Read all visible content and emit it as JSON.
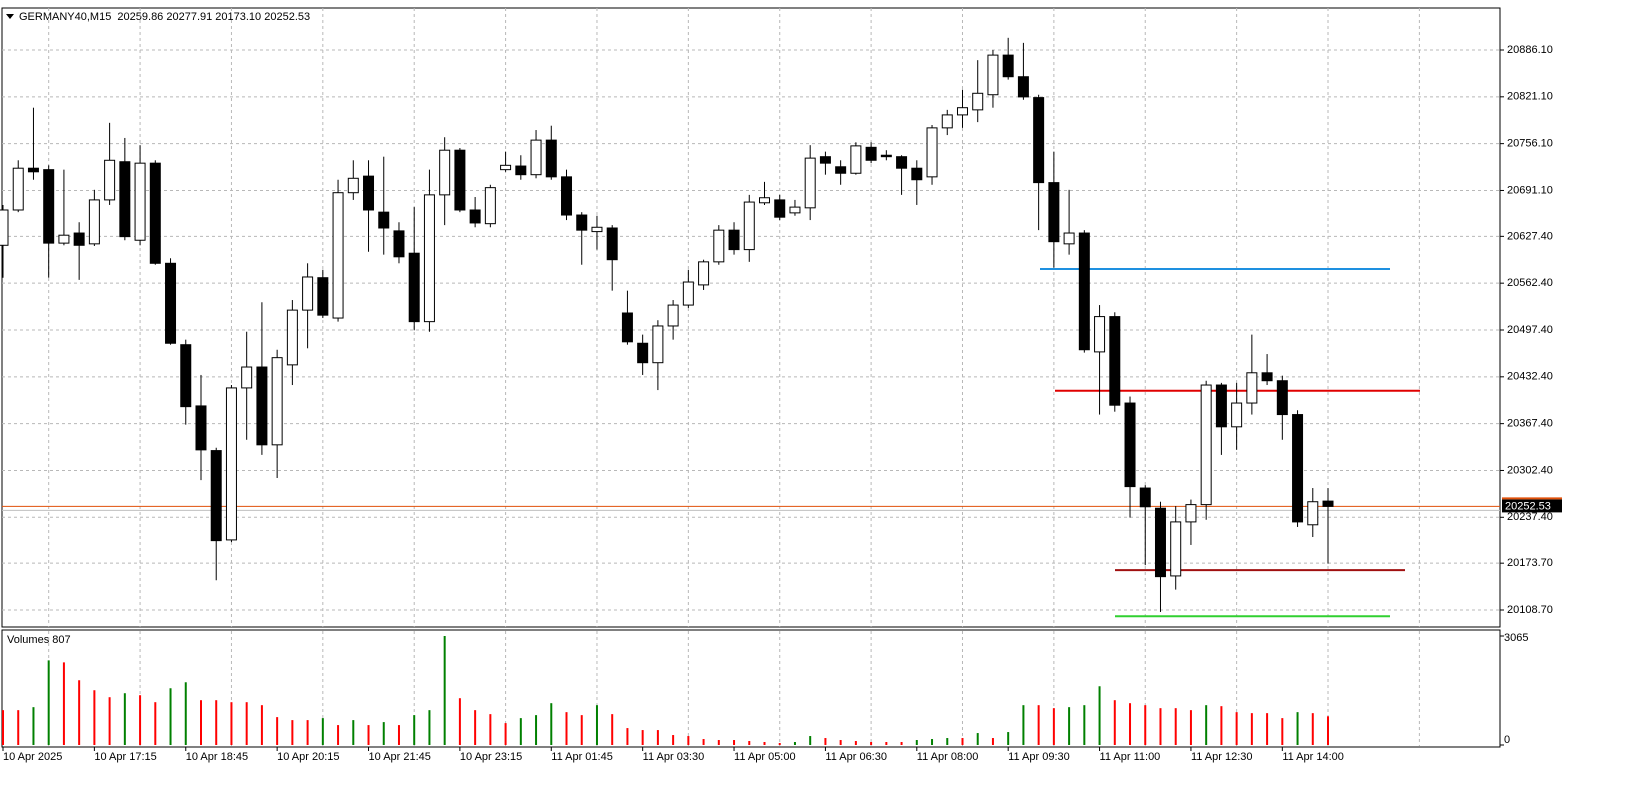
{
  "chart_data": {
    "type": "candlestick",
    "title": "GERMANY40,M15  20259.86 20277.91 20173.10 20252.53",
    "categories": [
      "10 Apr 2025",
      null,
      null,
      null,
      null,
      null,
      "10 Apr 17:15",
      null,
      null,
      null,
      null,
      null,
      "10 Apr 18:45",
      null,
      null,
      null,
      null,
      null,
      "10 Apr 20:15",
      null,
      null,
      null,
      null,
      null,
      "10 Apr 21:45",
      null,
      null,
      null,
      null,
      null,
      "10 Apr 23:15",
      null,
      null,
      null,
      null,
      null,
      "11 Apr 01:45",
      null,
      null,
      null,
      null,
      null,
      "11 Apr 03:30",
      null,
      null,
      null,
      null,
      null,
      "11 Apr 05:00",
      null,
      null,
      null,
      null,
      null,
      "11 Apr 06:30",
      null,
      null,
      null,
      null,
      null,
      "11 Apr 08:00",
      null,
      null,
      null,
      null,
      null,
      "11 Apr 09:30",
      null,
      null,
      null,
      null,
      null,
      "11 Apr 11:00",
      null,
      null,
      null,
      null,
      null,
      "11 Apr 12:30",
      null,
      null,
      null,
      null,
      null,
      "11 Apr 14:00",
      null,
      null,
      null
    ],
    "open": [
      20615,
      20664,
      20722,
      20720,
      20618,
      20632,
      20617,
      20678,
      20731,
      20622,
      20729,
      20590,
      20477,
      20392,
      20330,
      20206,
      20417,
      20446,
      20338,
      20449,
      20525,
      20570,
      20514,
      20688,
      20711,
      20661,
      20635,
      20604,
      20509,
      20685,
      20747,
      20664,
      20645,
      20720,
      20725,
      20713,
      20761,
      20710,
      20657,
      20634,
      20639,
      20521,
      20479,
      20452,
      20503,
      20532,
      20560,
      20592,
      20636,
      20609,
      20674,
      20678,
      20660,
      20667,
      20738,
      20724,
      20715,
      20751,
      20740,
      20738,
      20722,
      20710,
      20778,
      20796,
      20803,
      20824,
      20879,
      20849,
      20820,
      20702,
      20617,
      20632,
      20467,
      20516,
      20396,
      20278,
      20250,
      20156,
      20231,
      20255,
      20421,
      20363,
      20396,
      20438,
      20427,
      20380,
      20227,
      20259.86
    ],
    "high": [
      20671,
      20733,
      20806,
      20726,
      20720,
      20647,
      20692,
      20785,
      20764,
      20754,
      20733,
      20597,
      20484,
      20435,
      20334,
      20421,
      20495,
      20536,
      20470,
      20539,
      20590,
      20581,
      20706,
      20733,
      20733,
      20738,
      20647,
      20668,
      20720,
      20765,
      20750,
      20682,
      20699,
      20745,
      20740,
      20775,
      20781,
      20720,
      20661,
      20656,
      20643,
      20552,
      20491,
      20511,
      20539,
      20581,
      20595,
      20643,
      20647,
      20685,
      20703,
      20685,
      20678,
      20754,
      20745,
      20733,
      20758,
      20758,
      20747,
      20740,
      20733,
      20782,
      20803,
      20831,
      20872,
      20886,
      20903,
      20896,
      20824,
      20745,
      20692,
      20636,
      20532,
      20522,
      20405,
      20282,
      20259,
      20253,
      20262,
      20427,
      20424,
      20424,
      20491,
      20464,
      20434,
      20386,
      20278,
      20277.91
    ],
    "low": [
      20570,
      20661,
      20706,
      20570,
      20615,
      20567,
      20614,
      20671,
      20622,
      20615,
      20588,
      20477,
      20366,
      20289,
      20150,
      20203,
      20345,
      20324,
      20292,
      20421,
      20472,
      20514,
      20509,
      20678,
      20606,
      20602,
      20590,
      20497,
      20495,
      20643,
      20661,
      20640,
      20640,
      20717,
      20706,
      20708,
      20706,
      20650,
      20588,
      20609,
      20552,
      20477,
      20435,
      20414,
      20484,
      20528,
      20553,
      20588,
      20602,
      20592,
      20671,
      20650,
      20656,
      20650,
      20713,
      20699,
      20713,
      20729,
      20733,
      20685,
      20671,
      20699,
      20768,
      20778,
      20786,
      20806,
      20845,
      20817,
      20636,
      20584,
      20602,
      20466,
      20380,
      20384,
      20237,
      20171,
      20106,
      20137,
      20199,
      20234,
      20324,
      20331,
      20380,
      20421,
      20345,
      20224,
      20210,
      20173.1
    ],
    "close": [
      20664,
      20722,
      20717,
      20618,
      20629,
      20615,
      20678,
      20733,
      20627,
      20729,
      20590,
      20479,
      20391,
      20331,
      20205,
      20417,
      20446,
      20338,
      20459,
      20525,
      20571,
      20518,
      20688,
      20708,
      20664,
      20639,
      20599,
      20509,
      20685,
      20747,
      20664,
      20646,
      20695,
      20726,
      20713,
      20761,
      20710,
      20657,
      20636,
      20640,
      20595,
      20481,
      20452,
      20503,
      20532,
      20564,
      20592,
      20636,
      20609,
      20675,
      20681,
      20654,
      20668,
      20736,
      20729,
      20715,
      20753,
      20733,
      20738,
      20722,
      20706,
      20778,
      20796,
      20806,
      20826,
      20879,
      20849,
      20821,
      20702,
      20620,
      20632,
      20470,
      20516,
      20393,
      20280,
      20252,
      20155,
      20231,
      20255,
      20421,
      20363,
      20396,
      20438,
      20427,
      20380,
      20231,
      20259,
      20252.53
    ],
    "ylim": [
      20085.1,
      20944.4
    ],
    "yticks": [
      {
        "value": 20886.1,
        "label": "20886.10"
      },
      {
        "value": 20821.1,
        "label": "20821.10"
      },
      {
        "value": 20756.1,
        "label": "20756.10"
      },
      {
        "value": 20691.1,
        "label": "20691.10"
      },
      {
        "value": 20627.4,
        "label": "20627.40"
      },
      {
        "value": 20562.4,
        "label": "20562.40"
      },
      {
        "value": 20497.4,
        "label": "20497.40"
      },
      {
        "value": 20432.4,
        "label": "20432.40"
      },
      {
        "value": 20367.4,
        "label": "20367.40"
      },
      {
        "value": 20302.4,
        "label": "20302.40"
      },
      {
        "value": 20237.4,
        "label": "20237.40"
      },
      {
        "value": 20173.7,
        "label": "20173.70"
      },
      {
        "value": 20108.7,
        "label": "20108.70"
      }
    ],
    "grid": true,
    "bull_color": "#ffffff",
    "bear_color": "#000000",
    "bid": 20252.53,
    "bid_color": "#e0500a",
    "levels": [
      {
        "value": 20582,
        "color": "#1e90e0"
      },
      {
        "value": 20413,
        "color": "#e00000"
      },
      {
        "value": 20164,
        "color": "#a01010"
      },
      {
        "value": 20100,
        "color": "#30d030"
      }
    ],
    "volume": {
      "title": "Volumes 807",
      "values": [
        980,
        980,
        1064,
        2380,
        2324,
        1820,
        1540,
        1344,
        1456,
        1400,
        1204,
        1596,
        1764,
        1260,
        1260,
        1204,
        1204,
        1120,
        784,
        700,
        700,
        756,
        560,
        700,
        560,
        644,
        560,
        840,
        980,
        3065,
        1316,
        980,
        868,
        616,
        756,
        840,
        1176,
        924,
        840,
        1120,
        868,
        476,
        420,
        420,
        280,
        252,
        168,
        140,
        140,
        112,
        84,
        56,
        84,
        252,
        196,
        140,
        112,
        84,
        84,
        84,
        140,
        168,
        196,
        196,
        336,
        196,
        364,
        1120,
        1120,
        1036,
        1064,
        1120,
        1652,
        1260,
        1176,
        1120,
        1036,
        1036,
        980,
        1120,
        1092,
        924,
        896,
        896,
        756,
        924,
        896,
        807
      ],
      "ylim": [
        0,
        3065
      ],
      "yticks": [
        0,
        3065
      ],
      "up_color": "#008000",
      "down_color": "#ff0000"
    }
  }
}
